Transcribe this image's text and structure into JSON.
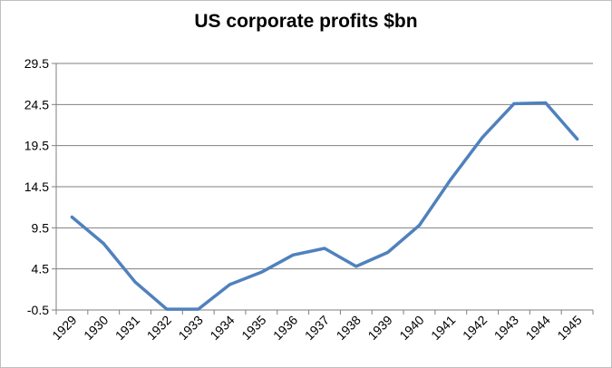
{
  "chart_data": {
    "type": "line",
    "title": "US corporate profits $bn",
    "xlabel": "",
    "ylabel": "",
    "categories": [
      "1929",
      "1930",
      "1931",
      "1932",
      "1933",
      "1934",
      "1935",
      "1936",
      "1937",
      "1938",
      "1939",
      "1940",
      "1941",
      "1942",
      "1943",
      "1944",
      "1945"
    ],
    "series": [
      {
        "name": "US corporate profits $bn",
        "values": [
          10.8,
          7.6,
          2.9,
          -0.4,
          -0.4,
          2.6,
          4.1,
          6.2,
          7.0,
          4.8,
          6.5,
          9.8,
          15.4,
          20.5,
          24.6,
          24.7,
          20.3
        ]
      }
    ],
    "y_ticks": [
      "-0.5",
      "4.5",
      "9.5",
      "14.5",
      "19.5",
      "24.5",
      "29.5"
    ],
    "ylim": [
      -0.5,
      29.5
    ],
    "grid": true,
    "legend": "none",
    "colors": {
      "line": "#4f81bd",
      "grid": "#7f7f7f"
    }
  }
}
